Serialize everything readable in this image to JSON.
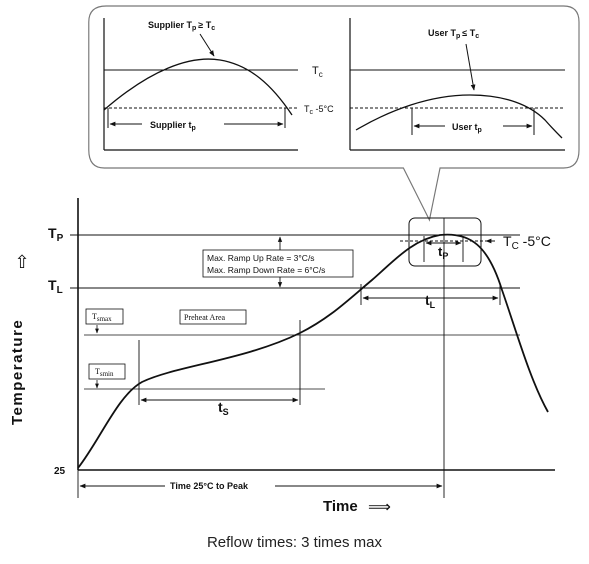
{
  "inset": {
    "left_panel": {
      "curve_label_main": "Supplier T",
      "curve_label_sub": "p",
      "curve_label_rel": "≥ T",
      "curve_label_rel_sub": "c",
      "span_label_main": "Supplier t",
      "span_label_sub": "p"
    },
    "right_panel": {
      "curve_label_main": "User T",
      "curve_label_sub": "p",
      "curve_label_rel": "≤ T",
      "curve_label_rel_sub": "c",
      "span_label_main": "User t",
      "span_label_sub": "p"
    },
    "tc_label_main": "T",
    "tc_label_sub": "c",
    "tc5_label_main": "T",
    "tc5_label_sub": "c",
    "tc5_label_rest": " -5°C"
  },
  "main": {
    "y_axis_label": "Temperature",
    "y_axis_arrow": "⇧",
    "tp_main": "T",
    "tp_sub": "P",
    "tl_main": "T",
    "tl_sub": "L",
    "y_25": "25",
    "tsmax_main": "T",
    "tsmax_sub": "smax",
    "tsmin_main": "T",
    "tsmin_sub": "smin",
    "preheat_label": "Preheat Area",
    "ramp_up": "Max. Ramp Up Rate = 3°C/s",
    "ramp_down": "Max. Ramp Down Rate = 6°C/s",
    "ts_main": "t",
    "ts_sub": "S",
    "tl_span_main": "t",
    "tl_span_sub": "L",
    "tp_span_main": "t",
    "tp_span_sub": "P",
    "tc5_main": "T",
    "tc5_sub": "C",
    "tc5_rest": " -5°C",
    "time_to_peak": "Time 25°C to Peak",
    "x_axis_label": "Time",
    "x_axis_arrow": "⟹"
  },
  "caption": "Reflow times: 3 times max"
}
